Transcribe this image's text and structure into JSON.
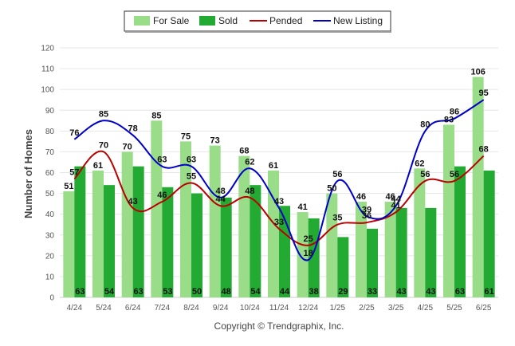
{
  "chart_data": {
    "type": "bar",
    "categories": [
      "4/24",
      "5/24",
      "6/24",
      "7/24",
      "8/24",
      "9/24",
      "10/24",
      "11/24",
      "12/24",
      "1/25",
      "2/25",
      "3/25",
      "4/25",
      "5/25",
      "6/25"
    ],
    "ylabel": "Number of Homes",
    "ylim": [
      0,
      120
    ],
    "yticks": [
      0,
      10,
      20,
      30,
      40,
      50,
      60,
      70,
      80,
      90,
      100,
      110,
      120
    ],
    "grid": true,
    "legend_position": "top-center",
    "series": [
      {
        "name": "For Sale",
        "kind": "bar",
        "color": "#99dd88",
        "values": [
          51,
          61,
          70,
          85,
          75,
          73,
          68,
          61,
          41,
          50,
          46,
          46,
          62,
          83,
          106
        ]
      },
      {
        "name": "Sold",
        "kind": "bar",
        "color": "#22aa33",
        "values": [
          63,
          54,
          63,
          53,
          50,
          48,
          54,
          44,
          38,
          29,
          33,
          43,
          43,
          63,
          61
        ]
      },
      {
        "name": "Pended",
        "kind": "line",
        "color": "#bb0000",
        "values": [
          57,
          70,
          43,
          46,
          55,
          44,
          48,
          33,
          25,
          35,
          36,
          41,
          56,
          56,
          68
        ]
      },
      {
        "name": "New Listing",
        "kind": "line",
        "color": "#0000cc",
        "values": [
          76,
          85,
          78,
          63,
          63,
          48,
          62,
          43,
          18,
          56,
          39,
          44,
          80,
          86,
          95
        ]
      }
    ]
  },
  "copyright": "Copyright © Trendgraphix, Inc."
}
